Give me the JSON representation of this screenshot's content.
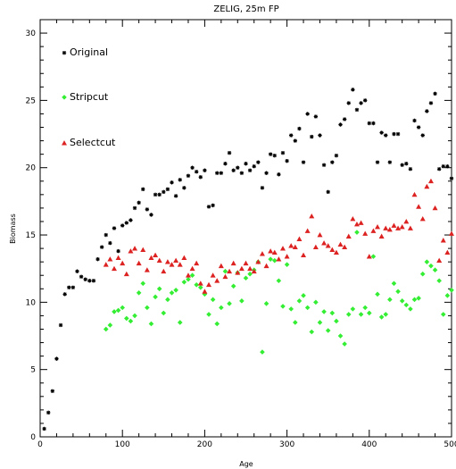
{
  "chart_data": {
    "type": "scatter",
    "title": "ZELIG, 25m FP",
    "xlabel": "Age",
    "ylabel": "Biomass",
    "xlim": [
      0,
      500
    ],
    "ylim": [
      0,
      31
    ],
    "xticks": [
      "0",
      "100",
      "200",
      "300",
      "400",
      "500"
    ],
    "yticks": [
      "0",
      "5",
      "10",
      "15",
      "20",
      "25",
      "30"
    ],
    "grid": false,
    "legend_position": "top-left",
    "series": [
      {
        "name": "Original",
        "color": "#000000",
        "marker": "star",
        "points": [
          [
            5,
            0.6
          ],
          [
            10,
            1.8
          ],
          [
            15,
            3.4
          ],
          [
            20,
            5.8
          ],
          [
            25,
            8.3
          ],
          [
            30,
            10.6
          ],
          [
            35,
            11.1
          ],
          [
            40,
            11.1
          ],
          [
            45,
            12.3
          ],
          [
            50,
            11.9
          ],
          [
            55,
            11.7
          ],
          [
            60,
            11.6
          ],
          [
            65,
            11.6
          ],
          [
            70,
            13.2
          ],
          [
            75,
            14.1
          ],
          [
            80,
            15.0
          ],
          [
            85,
            14.4
          ],
          [
            90,
            15.5
          ],
          [
            95,
            13.8
          ],
          [
            100,
            15.7
          ],
          [
            105,
            15.9
          ],
          [
            110,
            16.1
          ],
          [
            115,
            17.0
          ],
          [
            120,
            17.4
          ],
          [
            125,
            18.4
          ],
          [
            130,
            16.9
          ],
          [
            135,
            16.5
          ],
          [
            140,
            18.0
          ],
          [
            145,
            18.0
          ],
          [
            150,
            18.2
          ],
          [
            155,
            18.4
          ],
          [
            160,
            18.9
          ],
          [
            165,
            17.9
          ],
          [
            170,
            19.1
          ],
          [
            175,
            18.5
          ],
          [
            180,
            19.4
          ],
          [
            185,
            20.0
          ],
          [
            190,
            19.7
          ],
          [
            195,
            19.3
          ],
          [
            200,
            19.8
          ],
          [
            205,
            17.1
          ],
          [
            210,
            17.2
          ],
          [
            215,
            19.6
          ],
          [
            220,
            19.6
          ],
          [
            225,
            20.3
          ],
          [
            230,
            21.1
          ],
          [
            235,
            19.8
          ],
          [
            240,
            20.0
          ],
          [
            245,
            19.6
          ],
          [
            250,
            20.3
          ],
          [
            255,
            19.8
          ],
          [
            260,
            20.1
          ],
          [
            265,
            20.4
          ],
          [
            270,
            18.5
          ],
          [
            275,
            19.6
          ],
          [
            280,
            21.0
          ],
          [
            285,
            20.9
          ],
          [
            290,
            19.5
          ],
          [
            295,
            21.1
          ],
          [
            300,
            20.5
          ],
          [
            305,
            22.4
          ],
          [
            310,
            22.0
          ],
          [
            315,
            22.9
          ],
          [
            320,
            20.4
          ],
          [
            325,
            24.0
          ],
          [
            330,
            22.3
          ],
          [
            335,
            23.8
          ],
          [
            340,
            22.4
          ],
          [
            345,
            20.2
          ],
          [
            350,
            18.2
          ],
          [
            355,
            20.4
          ],
          [
            360,
            20.9
          ],
          [
            365,
            23.2
          ],
          [
            370,
            23.6
          ],
          [
            375,
            24.8
          ],
          [
            380,
            25.8
          ],
          [
            385,
            24.3
          ],
          [
            390,
            24.8
          ],
          [
            395,
            25.0
          ],
          [
            400,
            23.3
          ],
          [
            405,
            23.3
          ],
          [
            410,
            20.4
          ],
          [
            415,
            22.6
          ],
          [
            420,
            22.4
          ],
          [
            425,
            20.4
          ],
          [
            430,
            22.5
          ],
          [
            435,
            22.5
          ],
          [
            440,
            20.2
          ],
          [
            445,
            20.3
          ],
          [
            450,
            19.9
          ],
          [
            455,
            23.5
          ],
          [
            460,
            23.0
          ],
          [
            465,
            22.4
          ],
          [
            470,
            24.2
          ],
          [
            475,
            24.8
          ],
          [
            480,
            25.5
          ],
          [
            485,
            19.9
          ],
          [
            490,
            20.1
          ],
          [
            495,
            20.1
          ],
          [
            500,
            19.2
          ]
        ]
      },
      {
        "name": "Stripcut",
        "color": "#33ee33",
        "marker": "diamond",
        "points": [
          [
            80,
            8.0
          ],
          [
            85,
            8.3
          ],
          [
            90,
            9.3
          ],
          [
            95,
            9.4
          ],
          [
            100,
            9.6
          ],
          [
            105,
            8.8
          ],
          [
            110,
            8.6
          ],
          [
            115,
            9.0
          ],
          [
            120,
            10.7
          ],
          [
            125,
            11.4
          ],
          [
            130,
            9.6
          ],
          [
            135,
            8.4
          ],
          [
            140,
            10.4
          ],
          [
            145,
            11.0
          ],
          [
            150,
            9.2
          ],
          [
            155,
            10.2
          ],
          [
            160,
            10.7
          ],
          [
            165,
            10.9
          ],
          [
            170,
            8.5
          ],
          [
            175,
            11.5
          ],
          [
            180,
            11.7
          ],
          [
            185,
            12.0
          ],
          [
            190,
            11.3
          ],
          [
            195,
            11.1
          ],
          [
            200,
            10.6
          ],
          [
            205,
            9.1
          ],
          [
            210,
            10.2
          ],
          [
            215,
            8.4
          ],
          [
            220,
            9.6
          ],
          [
            225,
            12.3
          ],
          [
            230,
            9.9
          ],
          [
            235,
            11.2
          ],
          [
            240,
            12.2
          ],
          [
            245,
            10.1
          ],
          [
            250,
            11.8
          ],
          [
            255,
            12.1
          ],
          [
            260,
            12.4
          ],
          [
            265,
            13.0
          ],
          [
            270,
            6.3
          ],
          [
            275,
            9.9
          ],
          [
            280,
            13.2
          ],
          [
            285,
            13.1
          ],
          [
            290,
            11.6
          ],
          [
            295,
            9.7
          ],
          [
            300,
            12.8
          ],
          [
            305,
            9.5
          ],
          [
            310,
            8.5
          ],
          [
            315,
            10.1
          ],
          [
            320,
            10.5
          ],
          [
            325,
            9.6
          ],
          [
            330,
            7.8
          ],
          [
            335,
            10.0
          ],
          [
            340,
            8.5
          ],
          [
            345,
            9.3
          ],
          [
            350,
            7.9
          ],
          [
            355,
            9.2
          ],
          [
            360,
            8.6
          ],
          [
            365,
            7.5
          ],
          [
            370,
            6.9
          ],
          [
            375,
            9.1
          ],
          [
            380,
            9.5
          ],
          [
            385,
            15.2
          ],
          [
            390,
            9.1
          ],
          [
            395,
            9.6
          ],
          [
            400,
            9.2
          ],
          [
            405,
            13.4
          ],
          [
            410,
            10.6
          ],
          [
            415,
            8.9
          ],
          [
            420,
            9.1
          ],
          [
            425,
            10.2
          ],
          [
            430,
            11.4
          ],
          [
            435,
            10.8
          ],
          [
            440,
            10.1
          ],
          [
            445,
            9.8
          ],
          [
            450,
            9.5
          ],
          [
            455,
            10.2
          ],
          [
            460,
            10.3
          ],
          [
            465,
            12.1
          ],
          [
            470,
            13.0
          ],
          [
            475,
            12.7
          ],
          [
            480,
            12.4
          ],
          [
            485,
            11.6
          ],
          [
            490,
            9.1
          ],
          [
            495,
            10.5
          ],
          [
            500,
            10.9
          ]
        ]
      },
      {
        "name": "Selectcut",
        "color": "#dd2222",
        "marker": "triangle",
        "points": [
          [
            80,
            12.8
          ],
          [
            85,
            13.2
          ],
          [
            90,
            12.5
          ],
          [
            95,
            13.3
          ],
          [
            100,
            12.9
          ],
          [
            105,
            12.1
          ],
          [
            110,
            13.8
          ],
          [
            115,
            14.0
          ],
          [
            120,
            12.9
          ],
          [
            125,
            13.9
          ],
          [
            130,
            12.4
          ],
          [
            135,
            13.3
          ],
          [
            140,
            13.5
          ],
          [
            145,
            13.1
          ],
          [
            150,
            12.3
          ],
          [
            155,
            13.0
          ],
          [
            160,
            12.8
          ],
          [
            165,
            13.1
          ],
          [
            170,
            12.8
          ],
          [
            175,
            13.3
          ],
          [
            180,
            12.0
          ],
          [
            185,
            12.5
          ],
          [
            190,
            12.9
          ],
          [
            195,
            11.4
          ],
          [
            200,
            10.8
          ],
          [
            205,
            11.3
          ],
          [
            210,
            12.0
          ],
          [
            215,
            11.6
          ],
          [
            220,
            12.7
          ],
          [
            225,
            11.9
          ],
          [
            230,
            12.3
          ],
          [
            235,
            12.9
          ],
          [
            240,
            12.2
          ],
          [
            245,
            12.5
          ],
          [
            250,
            12.9
          ],
          [
            255,
            12.5
          ],
          [
            260,
            12.3
          ],
          [
            265,
            13.0
          ],
          [
            270,
            13.6
          ],
          [
            275,
            12.7
          ],
          [
            280,
            13.8
          ],
          [
            285,
            13.7
          ],
          [
            290,
            13.2
          ],
          [
            295,
            14.0
          ],
          [
            300,
            13.4
          ],
          [
            305,
            14.2
          ],
          [
            310,
            14.1
          ],
          [
            315,
            14.7
          ],
          [
            320,
            13.5
          ],
          [
            325,
            15.3
          ],
          [
            330,
            16.4
          ],
          [
            335,
            14.1
          ],
          [
            340,
            15.0
          ],
          [
            345,
            14.4
          ],
          [
            350,
            14.2
          ],
          [
            355,
            13.9
          ],
          [
            360,
            13.7
          ],
          [
            365,
            14.3
          ],
          [
            370,
            14.1
          ],
          [
            375,
            14.9
          ],
          [
            380,
            16.2
          ],
          [
            385,
            15.8
          ],
          [
            390,
            15.9
          ],
          [
            395,
            15.1
          ],
          [
            400,
            13.4
          ],
          [
            405,
            15.3
          ],
          [
            410,
            15.6
          ],
          [
            415,
            14.9
          ],
          [
            420,
            15.5
          ],
          [
            425,
            15.4
          ],
          [
            430,
            15.7
          ],
          [
            435,
            15.5
          ],
          [
            440,
            15.6
          ],
          [
            445,
            16.0
          ],
          [
            450,
            15.5
          ],
          [
            455,
            18.0
          ],
          [
            460,
            17.1
          ],
          [
            465,
            16.2
          ],
          [
            470,
            18.6
          ],
          [
            475,
            19.0
          ],
          [
            480,
            17.0
          ],
          [
            485,
            13.1
          ],
          [
            490,
            14.6
          ],
          [
            495,
            13.7
          ],
          [
            500,
            15.1
          ]
        ]
      }
    ]
  }
}
